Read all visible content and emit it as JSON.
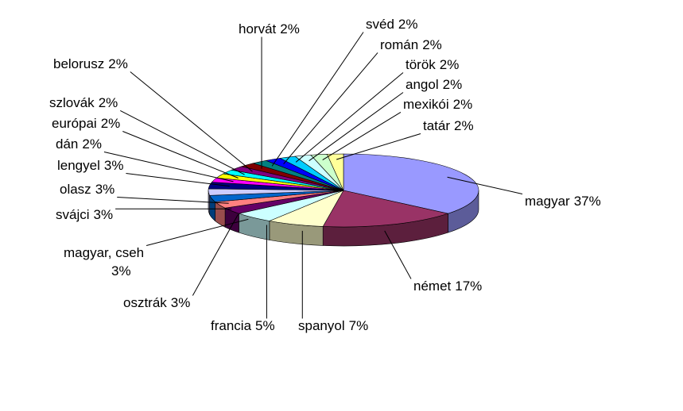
{
  "chart_data": {
    "type": "pie3d",
    "categories": [
      "magyar",
      "német",
      "spanyol",
      "francia",
      "magyar, cseh",
      "osztrák",
      "svájci",
      "olasz",
      "lengyel",
      "dán",
      "európai",
      "szlovák",
      "belorusz",
      "horvát",
      "svéd",
      "román",
      "török",
      "angol",
      "mexikói",
      "tatár"
    ],
    "values": [
      37,
      17,
      7,
      5,
      3,
      3,
      3,
      3,
      3,
      2,
      2,
      2,
      2,
      2,
      2,
      2,
      2,
      2,
      2,
      2
    ],
    "value_labels": [
      "37%",
      "17%",
      "7%",
      "5%",
      "3%",
      "3%",
      "3%",
      "3%",
      "3%",
      "2%",
      "2%",
      "2%",
      "2%",
      "2%",
      "2%",
      "2%",
      "2%",
      "2%",
      "2%",
      "2%"
    ],
    "colors": [
      "#9999ff",
      "#993366",
      "#ffffcc",
      "#ccffff",
      "#660066",
      "#ff8080",
      "#0066cc",
      "#ccccff",
      "#000080",
      "#ff00ff",
      "#ffff00",
      "#00ffff",
      "#800080",
      "#800000",
      "#008080",
      "#0000ff",
      "#00ccff",
      "#ccffff",
      "#ccffcc",
      "#ffff99"
    ]
  }
}
